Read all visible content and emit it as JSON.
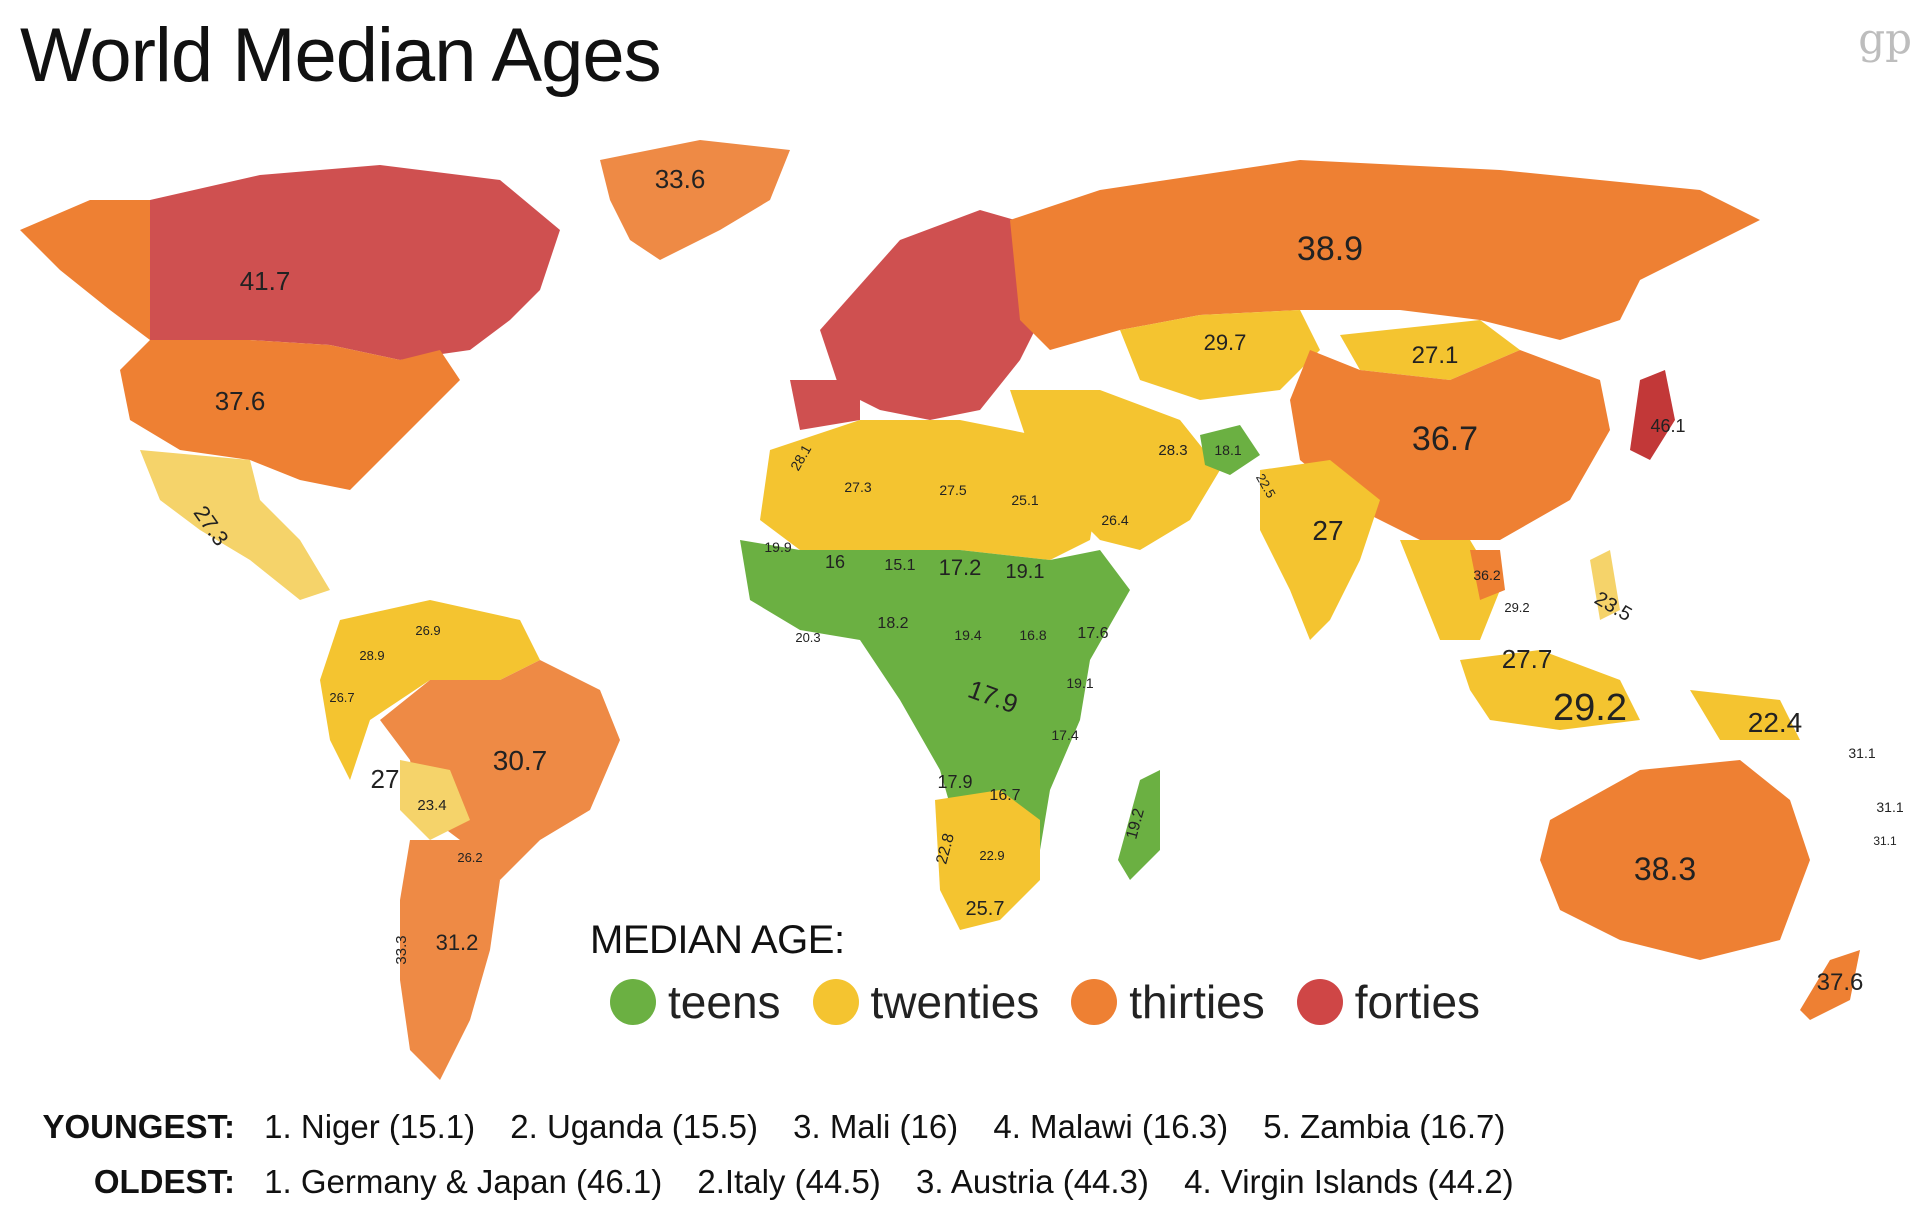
{
  "title": "World Median Ages",
  "watermark": "gp",
  "legend": {
    "title": "MEDIAN AGE:",
    "items": [
      {
        "label": "teens",
        "color": "#6bb042"
      },
      {
        "label": "twenties",
        "color": "#f4c430"
      },
      {
        "label": "thirties",
        "color": "#ee8033"
      },
      {
        "label": "forties",
        "color": "#cf4646"
      }
    ]
  },
  "regions": {
    "greenland": "33.6",
    "canada": "41.7",
    "usa": "37.6",
    "mexico": "27.3",
    "russia": "38.9",
    "china": "36.7",
    "india": "27",
    "australia": "38.3",
    "brazil": "30.7",
    "argentina": "31.2",
    "chile": "33.3",
    "bolivia": "23.4",
    "peru": "27",
    "indonesia": "29.2",
    "papua_new_guinea": "22.4",
    "new_zealand": "37.6",
    "kazakhstan": "29.7",
    "mongolia": "27.1",
    "japan": "46.1",
    "malaysia": "27.7",
    "philippines": "23.5",
    "algeria": "27.5",
    "morocco": "28.1",
    "niger": "15.1",
    "chad": "17.2",
    "sudan": "19.1",
    "mali": "16",
    "nigeria": "18.2",
    "drc": "17.9",
    "angola": "17.9",
    "ethiopia": "17.6",
    "kenya": "19.1",
    "tanzania": "17.4",
    "zambia": "16.7",
    "madagascar": "19.2",
    "south_africa": "25.7",
    "namibia": "22.8",
    "botswana": "22.9",
    "egypt": "25.1",
    "saudi_arabia": "26.4",
    "iran": "28.3",
    "afghanistan": "18.1",
    "pakistan": "22.5",
    "libya": "27.3",
    "mauritania": "19.9",
    "ghana": "20.3",
    "car": "19.4",
    "south_sudan": "16.8",
    "colombia": "28.9",
    "venezuela": "26.9",
    "ecuador": "26.7",
    "paraguay": "26.2",
    "thailand": "36.2",
    "vietnam": "29.2",
    "fiji": "31.1",
    "samoa": "31.1",
    "tonga": "31.1"
  },
  "rankings": {
    "youngest_label": "YOUNGEST:",
    "youngest": [
      "1. Niger (15.1)",
      "2. Uganda (15.5)",
      "3. Mali (16)",
      "4. Malawi (16.3)",
      "5. Zambia (16.7)"
    ],
    "oldest_label": "OLDEST:",
    "oldest": [
      "1. Germany & Japan (46.1)",
      "2.Italy (44.5)",
      "3. Austria (44.3)",
      "4. Virgin Islands (44.2)"
    ]
  }
}
